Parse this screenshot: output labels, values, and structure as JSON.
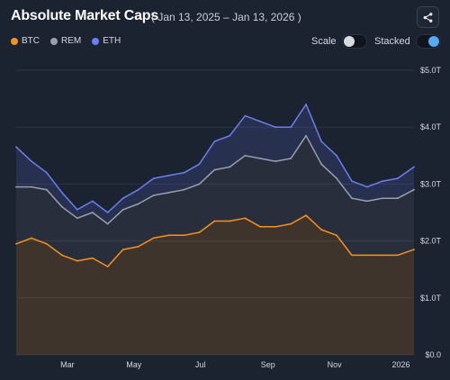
{
  "header": {
    "title": "Absolute Market Caps",
    "date_range": "( Jan 13, 2025 – Jan 13, 2026 )",
    "share_icon": "share-icon"
  },
  "controls": {
    "scale_label": "Scale",
    "scale_on": false,
    "stacked_label": "Stacked",
    "stacked_on": true
  },
  "colors": {
    "btc": "#f7931a",
    "rem": "#9aa0aa",
    "eth": "#6b7ff0",
    "background": "#1b2230"
  },
  "chart_data": {
    "type": "area",
    "stacked": true,
    "x_ticks": [
      "Mar",
      "May",
      "Jul",
      "Sep",
      "Nov",
      "2026"
    ],
    "y_ticks": [
      "$0.0",
      "$1.0T",
      "$2.0T",
      "$3.0T",
      "$4.0T",
      "$5.0T"
    ],
    "ylim": [
      0,
      5
    ],
    "y_unit": "T",
    "grid": true,
    "legend_position": "top-left",
    "x": [
      "2025-01-13",
      "2025-01-27",
      "2025-02-10",
      "2025-02-24",
      "2025-03-10",
      "2025-03-24",
      "2025-04-07",
      "2025-04-21",
      "2025-05-05",
      "2025-05-19",
      "2025-06-02",
      "2025-06-16",
      "2025-06-30",
      "2025-07-14",
      "2025-07-28",
      "2025-08-11",
      "2025-08-25",
      "2025-09-08",
      "2025-09-22",
      "2025-10-06",
      "2025-10-20",
      "2025-11-03",
      "2025-11-17",
      "2025-12-01",
      "2025-12-15",
      "2025-12-29",
      "2026-01-13"
    ],
    "series": [
      {
        "name": "BTC",
        "values": [
          1.95,
          2.05,
          1.95,
          1.75,
          1.65,
          1.7,
          1.55,
          1.85,
          1.9,
          2.05,
          2.1,
          2.1,
          2.15,
          2.35,
          2.35,
          2.4,
          2.25,
          2.25,
          2.3,
          2.45,
          2.2,
          2.1,
          1.75,
          1.75,
          1.75,
          1.75,
          1.85
        ]
      },
      {
        "name": "REM",
        "values": [
          1.0,
          0.9,
          0.95,
          0.85,
          0.75,
          0.8,
          0.75,
          0.7,
          0.75,
          0.75,
          0.75,
          0.8,
          0.85,
          0.9,
          0.95,
          1.1,
          1.2,
          1.15,
          1.15,
          1.4,
          1.15,
          1.0,
          1.0,
          0.95,
          1.0,
          1.0,
          1.05
        ]
      },
      {
        "name": "ETH",
        "values": [
          0.7,
          0.45,
          0.3,
          0.25,
          0.15,
          0.2,
          0.2,
          0.2,
          0.25,
          0.3,
          0.3,
          0.3,
          0.35,
          0.5,
          0.55,
          0.7,
          0.65,
          0.6,
          0.55,
          0.55,
          0.4,
          0.4,
          0.3,
          0.25,
          0.3,
          0.35,
          0.4
        ]
      }
    ]
  }
}
